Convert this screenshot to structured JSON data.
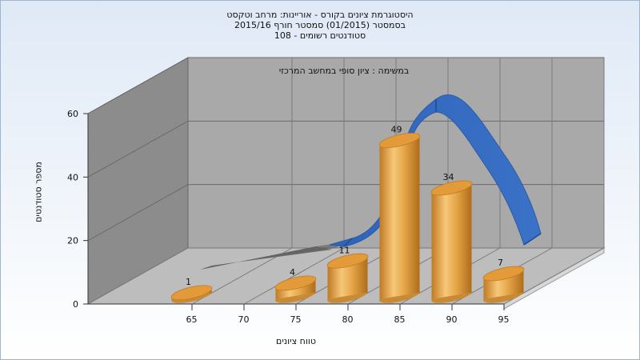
{
  "chart_data": {
    "type": "bar",
    "title_lines": [
      "היסטוגרמת ציונים בקורס - אוריינות: מרחב וטקסט",
      "בסמסטר  (01/2015)  סמסטר חורף 2015/16",
      "108 - סטודנטים רשומים"
    ],
    "subtitle": "במשימה : ציון סופי במחשב המרכזי",
    "xlabel": "טווח ציונים",
    "ylabel": "מספר סטודנטים",
    "x_ticks": [
      "65",
      "70",
      "75",
      "80",
      "85",
      "90",
      "95"
    ],
    "y_ticks": [
      0,
      20,
      40,
      60
    ],
    "ylim": [
      0,
      60
    ],
    "categories": [
      "65",
      "75",
      "80",
      "85",
      "90",
      "95"
    ],
    "values": [
      1,
      4,
      11,
      49,
      34,
      7
    ],
    "data_labels": [
      "1",
      "4",
      "11",
      "49",
      "34",
      "7"
    ],
    "curve": "normal distribution overlay",
    "colors": {
      "bar": "#e6a84a",
      "bar_dark": "#b8741e",
      "curve": "#3a72c8",
      "wall": "#a8a8a8",
      "floor": "#b8b8b8",
      "side_wall": "#8a8a8a"
    }
  }
}
